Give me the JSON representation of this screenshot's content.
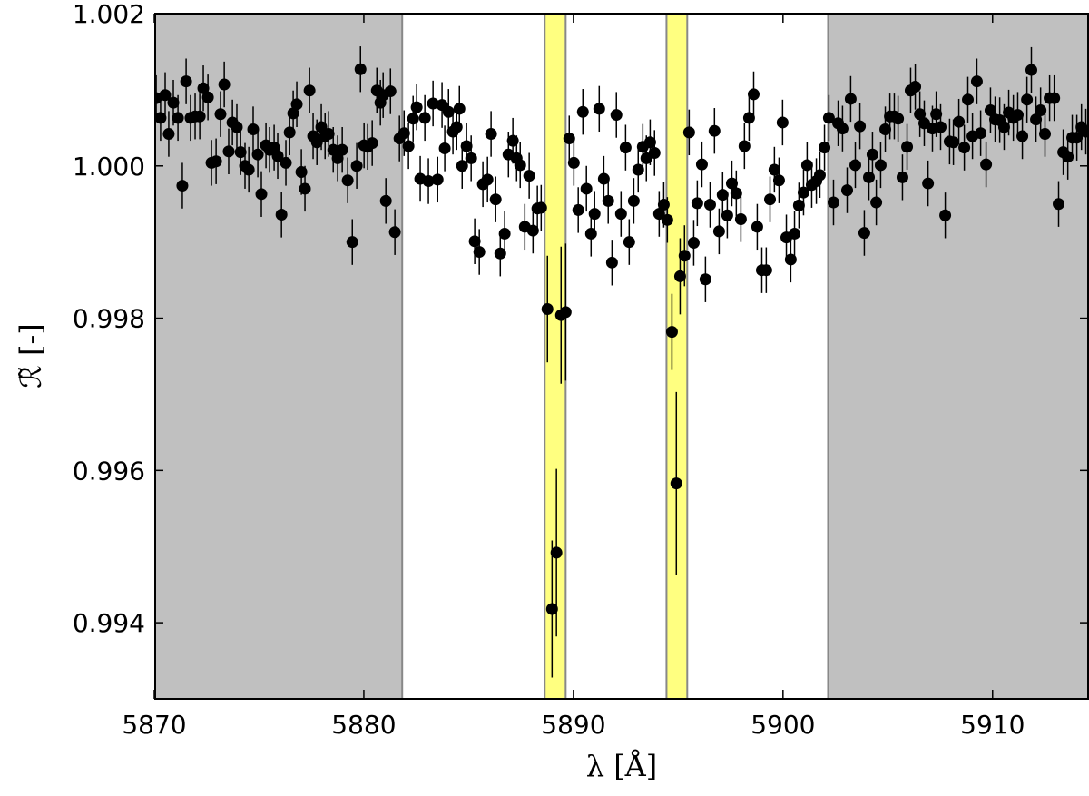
{
  "chart_data": {
    "type": "errorbar-scatter",
    "x_label": "λ [Å]",
    "y_label": "ℛ̃ [-]",
    "xlim": [
      5870,
      5914.6
    ],
    "ylim": [
      0.993,
      1.002
    ],
    "xticks": [
      5870,
      5880,
      5890,
      5900,
      5910
    ],
    "yticks": [
      {
        "value": 0.994,
        "label": "0.994"
      },
      {
        "value": 0.996,
        "label": "0.996"
      },
      {
        "value": 0.998,
        "label": "0.998"
      },
      {
        "value": 1,
        "label": "1.000"
      },
      {
        "value": 1.002,
        "label": "1.002"
      }
    ],
    "shaded_regions": [
      {
        "xmin": 5870,
        "xmax": 5881.83,
        "color": "#c0c0c0"
      },
      {
        "xmin": 5902.15,
        "xmax": 5914.6,
        "color": "#c0c0c0"
      },
      {
        "xmin": 5888.63,
        "xmax": 5889.63,
        "color": "#ffff80"
      },
      {
        "xmin": 5894.44,
        "xmax": 5895.43,
        "color": "#ffff80"
      }
    ],
    "series": [
      {
        "color": "#000000",
        "x": [
          5870.09,
          5870.3,
          5870.52,
          5870.69,
          5870.91,
          5871.13,
          5871.34,
          5871.52,
          5871.73,
          5871.95,
          5872.17,
          5872.34,
          5872.56,
          5872.73,
          5872.95,
          5873.16,
          5873.34,
          5873.55,
          5873.73,
          5873.94,
          5874.12,
          5874.33,
          5874.51,
          5874.72,
          5874.94,
          5875.11,
          5875.33,
          5875.5,
          5875.72,
          5875.89,
          5876.07,
          5876.28,
          5876.46,
          5876.63,
          5876.8,
          5877.02,
          5877.19,
          5877.41,
          5877.58,
          5877.76,
          5877.97,
          5878.15,
          5878.32,
          5878.54,
          5878.75,
          5878.97,
          5879.23,
          5879.45,
          5879.66,
          5879.84,
          5880.01,
          5880.18,
          5880.4,
          5880.62,
          5880.79,
          5880.92,
          5881.05,
          5881.27,
          5881.48,
          5881.7,
          5881.92,
          5882.13,
          5882.35,
          5882.52,
          5882.69,
          5882.91,
          5883.08,
          5883.3,
          5883.52,
          5883.73,
          5883.86,
          5884.04,
          5884.25,
          5884.43,
          5884.56,
          5884.69,
          5884.9,
          5885.12,
          5885.29,
          5885.51,
          5885.68,
          5885.9,
          5886.07,
          5886.29,
          5886.51,
          5886.72,
          5886.9,
          5887.11,
          5887.29,
          5887.46,
          5887.68,
          5887.89,
          5888.07,
          5888.28,
          5888.46,
          5888.76,
          5888.98,
          5889.19,
          5889.41,
          5889.63,
          5889.8,
          5890.02,
          5890.23,
          5890.45,
          5890.62,
          5890.84,
          5891.01,
          5891.23,
          5891.45,
          5891.66,
          5891.84,
          5892.05,
          5892.27,
          5892.49,
          5892.66,
          5892.88,
          5893.09,
          5893.31,
          5893.48,
          5893.66,
          5893.87,
          5894.09,
          5894.31,
          5894.48,
          5894.7,
          5894.91,
          5895.09,
          5895.3,
          5895.52,
          5895.74,
          5895.91,
          5896.13,
          5896.3,
          5896.52,
          5896.73,
          5896.95,
          5897.12,
          5897.34,
          5897.56,
          5897.77,
          5897.99,
          5898.16,
          5898.38,
          5898.6,
          5898.77,
          5898.99,
          5899.2,
          5899.38,
          5899.59,
          5899.81,
          5899.98,
          5900.16,
          5900.37,
          5900.55,
          5900.76,
          5900.98,
          5901.15,
          5901.37,
          5901.59,
          5901.76,
          5901.98,
          5902.19,
          5902.41,
          5902.63,
          5902.84,
          5903.06,
          5903.23,
          5903.45,
          5903.67,
          5903.88,
          5904.1,
          5904.27,
          5904.45,
          5904.66,
          5904.88,
          5905.1,
          5905.31,
          5905.49,
          5905.7,
          5905.92,
          5906.09,
          5906.31,
          5906.53,
          5906.74,
          5906.92,
          5907.13,
          5907.31,
          5907.52,
          5907.74,
          5907.95,
          5908.13,
          5908.39,
          5908.65,
          5908.82,
          5909.04,
          5909.25,
          5909.43,
          5909.69,
          5909.9,
          5910.12,
          5910.34,
          5910.55,
          5910.77,
          5910.99,
          5911.2,
          5911.42,
          5911.64,
          5911.85,
          5912.07,
          5912.29,
          5912.5,
          5912.72,
          5912.94,
          5913.15,
          5913.37,
          5913.59,
          5913.8,
          5914.02,
          5914.24,
          5914.45
        ],
        "values": [
          1.00089,
          1.00063,
          1.00093,
          1.00042,
          1.00083,
          1.00063,
          0.99974,
          1.00111,
          1.00063,
          1.00065,
          1.00065,
          1.00102,
          1.0009,
          1.00004,
          1.00006,
          1.00068,
          1.00107,
          1.00019,
          1.00057,
          1.00051,
          1.00018,
          1.0,
          0.99995,
          1.00048,
          1.00015,
          0.99963,
          1.00027,
          1.00021,
          1.00024,
          1.00013,
          0.99936,
          1.00004,
          1.00044,
          1.00069,
          1.00081,
          0.99992,
          0.9997,
          1.00099,
          1.00039,
          1.00031,
          1.00051,
          1.00039,
          1.00042,
          1.00021,
          1.0001,
          1.00021,
          0.99981,
          0.999,
          1.0,
          1.00127,
          1.00027,
          1.00025,
          1.0003,
          1.00099,
          1.00083,
          1.00093,
          0.99954,
          1.00098,
          0.99913,
          1.00036,
          1.00043,
          1.00026,
          1.00062,
          1.00077,
          0.99983,
          1.00063,
          0.9998,
          1.00082,
          0.99982,
          1.0008,
          1.00023,
          1.00071,
          1.00045,
          1.00051,
          1.00075,
          1.0,
          1.00026,
          1.0001,
          0.99901,
          0.99887,
          0.99976,
          0.99982,
          1.00042,
          0.99956,
          0.99885,
          0.99911,
          1.00015,
          1.00033,
          1.0001,
          1.00001,
          0.9992,
          0.99987,
          0.99915,
          0.99944,
          0.99945,
          0.99812,
          0.99418,
          0.99492,
          0.99804,
          0.99808,
          1.00036,
          1.00004,
          0.99942,
          1.00071,
          0.9997,
          0.99911,
          0.99937,
          1.00075,
          0.99983,
          0.99954,
          0.99873,
          1.00067,
          0.99937,
          1.00024,
          0.999,
          0.99954,
          0.99995,
          1.00025,
          1.0001,
          1.00031,
          1.00017,
          0.99937,
          0.99949,
          0.99929,
          0.99782,
          0.99583,
          0.99855,
          0.99882,
          1.00044,
          0.99899,
          0.99951,
          1.00002,
          0.99851,
          0.99949,
          1.00046,
          0.99914,
          0.99962,
          0.99935,
          0.99977,
          0.99964,
          0.9993,
          1.00026,
          1.00063,
          1.00094,
          0.9992,
          0.99863,
          0.99863,
          0.99956,
          0.99995,
          0.99981,
          1.00057,
          0.99906,
          0.99877,
          0.99911,
          0.99948,
          0.99965,
          1.00001,
          0.99975,
          0.9998,
          0.99988,
          1.00024,
          1.00063,
          0.99952,
          1.00056,
          1.00049,
          0.99968,
          1.00088,
          1.00001,
          1.00052,
          0.99912,
          0.99985,
          1.00015,
          0.99952,
          1.00001,
          1.00048,
          1.00065,
          1.00065,
          1.00062,
          0.99985,
          1.00025,
          1.00099,
          1.00104,
          1.00068,
          1.00056,
          0.99977,
          1.00049,
          1.00068,
          1.00051,
          0.99935,
          1.00032,
          1.00031,
          1.00058,
          1.00024,
          1.00087,
          1.00039,
          1.00111,
          1.00043,
          1.00002,
          1.00073,
          1.00061,
          1.0006,
          1.00051,
          1.0007,
          1.00063,
          1.00067,
          1.00039,
          1.00087,
          1.00126,
          1.00061,
          1.00073,
          1.00042,
          1.00089,
          1.00089,
          0.9995,
          1.00018,
          1.00012,
          1.00037,
          1.00037,
          1.00051,
          1.00045
        ],
        "errors": [
          0.0003,
          0.0003,
          0.0003,
          0.0003,
          0.0003,
          0.0003,
          0.0003,
          0.0003,
          0.0003,
          0.0003,
          0.0003,
          0.0003,
          0.0003,
          0.0003,
          0.0003,
          0.0003,
          0.0003,
          0.0003,
          0.0003,
          0.0003,
          0.0003,
          0.0003,
          0.0003,
          0.0003,
          0.0003,
          0.0003,
          0.0003,
          0.0003,
          0.0003,
          0.0003,
          0.0003,
          0.0003,
          0.0003,
          0.0003,
          0.0003,
          0.0003,
          0.0003,
          0.0003,
          0.0003,
          0.0003,
          0.0003,
          0.0003,
          0.0003,
          0.0003,
          0.0003,
          0.0003,
          0.0003,
          0.0003,
          0.0003,
          0.0003,
          0.0003,
          0.0003,
          0.0003,
          0.0003,
          0.0003,
          0.0003,
          0.0003,
          0.0003,
          0.0003,
          0.0003,
          0.0003,
          0.0003,
          0.0003,
          0.0003,
          0.0003,
          0.0003,
          0.0003,
          0.0003,
          0.0003,
          0.0003,
          0.0003,
          0.0003,
          0.0003,
          0.0003,
          0.0003,
          0.0003,
          0.0003,
          0.0003,
          0.0003,
          0.0003,
          0.0003,
          0.0003,
          0.0003,
          0.0003,
          0.0003,
          0.0003,
          0.0003,
          0.0003,
          0.0003,
          0.0003,
          0.0003,
          0.0003,
          0.0003,
          0.0003,
          0.0003,
          0.0007,
          0.0009,
          0.0011,
          0.0009,
          0.0009,
          0.0003,
          0.0003,
          0.0003,
          0.0003,
          0.0003,
          0.0003,
          0.0003,
          0.0003,
          0.0003,
          0.0003,
          0.0003,
          0.0003,
          0.0003,
          0.0003,
          0.0003,
          0.0003,
          0.0003,
          0.0003,
          0.0003,
          0.0003,
          0.0003,
          0.0003,
          0.0003,
          0.0003,
          0.0005,
          0.0012,
          0.0005,
          0.0004,
          0.0003,
          0.0003,
          0.0003,
          0.0003,
          0.0003,
          0.0003,
          0.0003,
          0.0003,
          0.0003,
          0.0003,
          0.0003,
          0.0003,
          0.0003,
          0.0003,
          0.0003,
          0.0003,
          0.0003,
          0.0003,
          0.0003,
          0.0003,
          0.0003,
          0.0003,
          0.0003,
          0.0003,
          0.0003,
          0.0003,
          0.0003,
          0.0003,
          0.0003,
          0.0003,
          0.0003,
          0.0003,
          0.0003,
          0.0003,
          0.0003,
          0.0003,
          0.0003,
          0.0003,
          0.0003,
          0.0003,
          0.0003,
          0.0003,
          0.0003,
          0.0003,
          0.0003,
          0.0003,
          0.0003,
          0.0003,
          0.0003,
          0.0003,
          0.0003,
          0.0003,
          0.0003,
          0.0003,
          0.0003,
          0.0003,
          0.0003,
          0.0003,
          0.0003,
          0.0003,
          0.0003,
          0.0003,
          0.0003,
          0.0003,
          0.0003,
          0.0003,
          0.0003,
          0.0003,
          0.0003,
          0.0003,
          0.0003,
          0.0003,
          0.0003,
          0.0003,
          0.0003,
          0.0003,
          0.0003,
          0.0003,
          0.0003,
          0.0003,
          0.0003,
          0.0003,
          0.0003,
          0.0003,
          0.0003,
          0.0003,
          0.0003,
          0.0003,
          0.0003,
          0.0003,
          0.0003,
          0.0003
        ]
      }
    ]
  }
}
